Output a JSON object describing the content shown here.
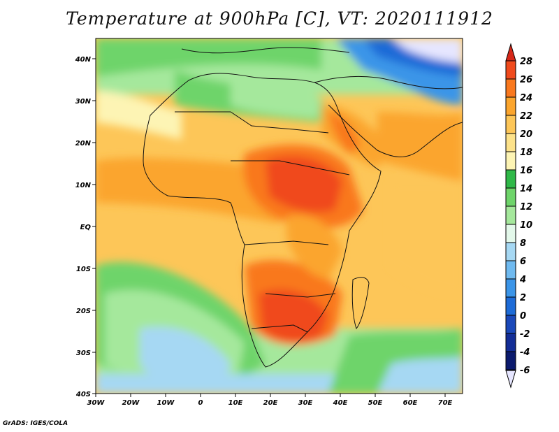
{
  "title": "Temperature at 900hPa [C], VT: 2020111912",
  "credit": "GrADS: IGES/COLA",
  "map": {
    "lon_range": [
      -30,
      75
    ],
    "lat_range": [
      -40,
      45
    ],
    "lon_ticks": [
      "30W",
      "20W",
      "10W",
      "0",
      "10E",
      "20E",
      "30E",
      "40E",
      "50E",
      "60E",
      "70E"
    ],
    "lat_ticks": [
      "40N",
      "30N",
      "20N",
      "10N",
      "EQ",
      "10S",
      "20S",
      "30S",
      "40S"
    ]
  },
  "colorbar": {
    "levels": [
      "28",
      "26",
      "24",
      "22",
      "20",
      "18",
      "16",
      "14",
      "12",
      "10",
      "8",
      "6",
      "4",
      "2",
      "0",
      "-2",
      "-4",
      "-6"
    ],
    "colors": [
      "#d62718",
      "#f04a1c",
      "#f9781e",
      "#fba52d",
      "#fdc658",
      "#fde28a",
      "#fdf4b4",
      "#2fb848",
      "#6ed46a",
      "#a5e89c",
      "#e3f8ea",
      "#a6d8f3",
      "#6fbaf0",
      "#3b95e8",
      "#1d6bd7",
      "#1a48b9",
      "#132d96",
      "#0b1a6d",
      "#e6e6ff"
    ]
  }
}
